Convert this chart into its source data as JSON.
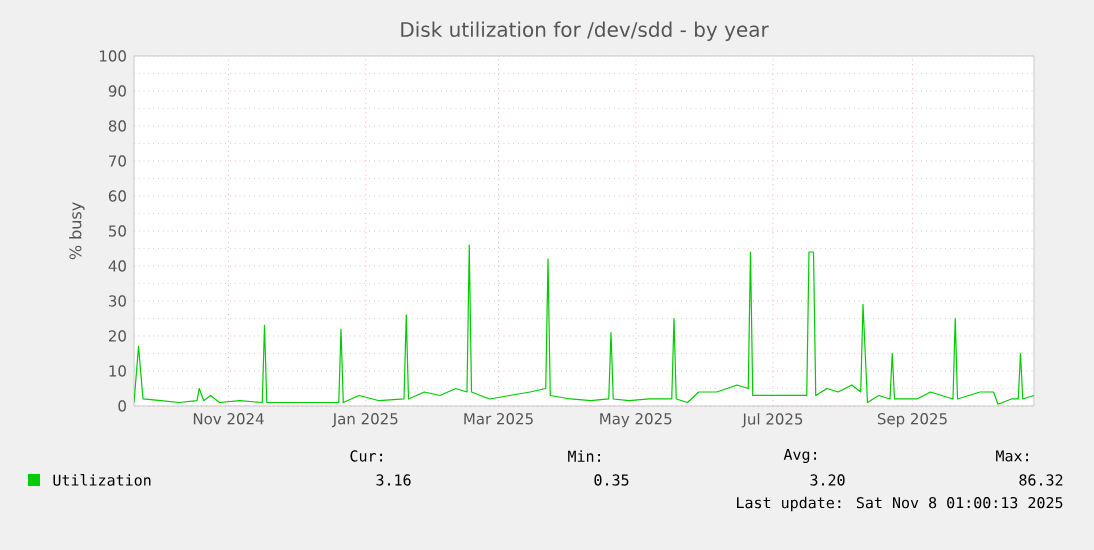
{
  "chart_data": {
    "type": "line",
    "title": "Disk utilization for /dev/sdd - by year",
    "ylabel": "% busy",
    "x": [
      "2024-10-04",
      "2024-10-06",
      "2024-10-08",
      "2024-10-16",
      "2024-10-24",
      "2024-11-01",
      "2024-11-02",
      "2024-11-04",
      "2024-11-07",
      "2024-11-11",
      "2024-11-20",
      "2024-11-30",
      "2024-12-01",
      "2024-12-02",
      "2024-12-17",
      "2025-01-03",
      "2025-01-04",
      "2025-01-05",
      "2025-01-12",
      "2025-01-21",
      "2025-02-01",
      "2025-02-02",
      "2025-02-03",
      "2025-02-10",
      "2025-02-17",
      "2025-02-24",
      "2025-03-01",
      "2025-03-02",
      "2025-03-03",
      "2025-03-11",
      "2025-03-20",
      "2025-03-29",
      "2025-04-05",
      "2025-04-06",
      "2025-04-07",
      "2025-04-16",
      "2025-04-25",
      "2025-05-03",
      "2025-05-04",
      "2025-05-05",
      "2025-05-12",
      "2025-05-21",
      "2025-05-31",
      "2025-06-01",
      "2025-06-02",
      "2025-06-07",
      "2025-06-12",
      "2025-06-20",
      "2025-06-29",
      "2025-07-04",
      "2025-07-05",
      "2025-07-06",
      "2025-07-17",
      "2025-07-30",
      "2025-07-31",
      "2025-08-02",
      "2025-08-03",
      "2025-08-08",
      "2025-08-13",
      "2025-08-19",
      "2025-08-23",
      "2025-08-24",
      "2025-08-26",
      "2025-08-31",
      "2025-09-05",
      "2025-09-06",
      "2025-09-07",
      "2025-09-17",
      "2025-09-23",
      "2025-10-03",
      "2025-10-04",
      "2025-10-05",
      "2025-10-15",
      "2025-10-21",
      "2025-10-23",
      "2025-10-29",
      "2025-11-01",
      "2025-11-02",
      "2025-11-03",
      "2025-11-08"
    ],
    "series": [
      {
        "name": "Utilization",
        "color": "#00cc00",
        "values": [
          1,
          17,
          2,
          1.5,
          1,
          1.5,
          5,
          1.5,
          3,
          1,
          1.5,
          1,
          23,
          1,
          1,
          1,
          22,
          1,
          3,
          1.5,
          2,
          26,
          2,
          4,
          3,
          5,
          4,
          46,
          4,
          2,
          3,
          4,
          5,
          42,
          3,
          2,
          1.5,
          2,
          21,
          2,
          1.5,
          2,
          2,
          25,
          2,
          1,
          4,
          4,
          6,
          5,
          44,
          3,
          3,
          3,
          44,
          44,
          3,
          5,
          4,
          6,
          4,
          29,
          1,
          3,
          2,
          15,
          2,
          2,
          4,
          2,
          25,
          2,
          4,
          4,
          0.5,
          2,
          2,
          15,
          2,
          3
        ]
      }
    ],
    "xlim": [
      "2024-10-04",
      "2025-11-08"
    ],
    "ylim": [
      0,
      100
    ],
    "xticks": [
      {
        "value": "2024-11-15",
        "label": "Nov 2024"
      },
      {
        "value": "2025-01-15",
        "label": "Jan 2025"
      },
      {
        "value": "2025-03-15",
        "label": "Mar 2025"
      },
      {
        "value": "2025-05-15",
        "label": "May 2025"
      },
      {
        "value": "2025-07-15",
        "label": "Jul 2025"
      },
      {
        "value": "2025-09-15",
        "label": "Sep 2025"
      }
    ],
    "yticks": [
      0,
      10,
      20,
      30,
      40,
      50,
      60,
      70,
      80,
      90,
      100
    ],
    "grid": true,
    "legend": "bottom",
    "annotations": [
      "Cur:",
      "Min:",
      "Avg:",
      "Max:",
      "3.16",
      "0.35",
      "3.20",
      "86.32",
      "Last update: Sat Nov  8 01:00:13 2025"
    ]
  }
}
